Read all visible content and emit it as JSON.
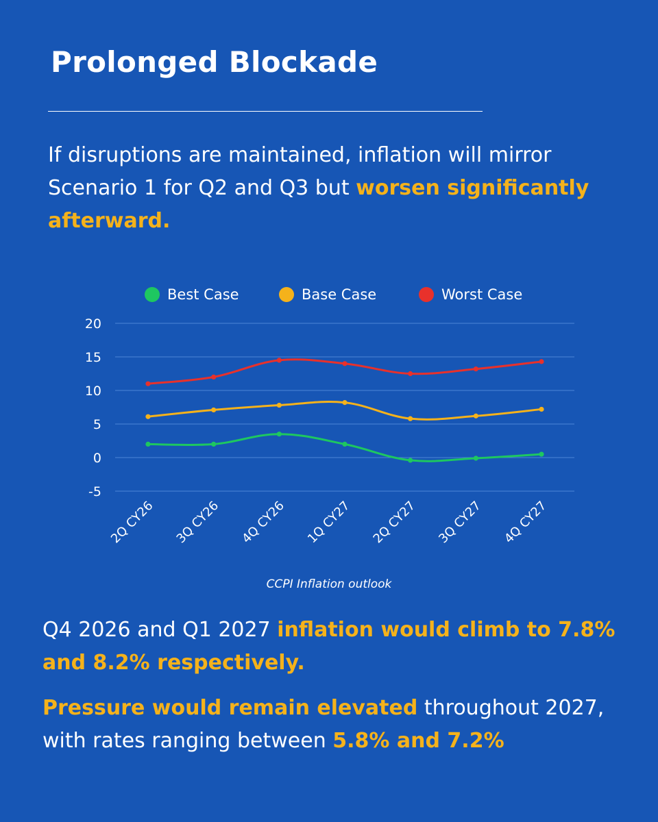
{
  "title": "Prolonged Blockade",
  "intro": {
    "text": "If disruptions are maintained, inflation will mirror Scenario 1 for Q2 and Q3 but ",
    "highlight": "worsen significantly afterward."
  },
  "chart_data": {
    "type": "line",
    "caption": "CCPI Inflation outlook",
    "categories": [
      "2Q CY26",
      "3Q CY26",
      "4Q CY26",
      "1Q CY27",
      "2Q CY27",
      "3Q CY27",
      "4Q CY27"
    ],
    "series": [
      {
        "name": "Best Case",
        "color": "#1ec760",
        "values": [
          2.0,
          2.0,
          3.5,
          2.0,
          -0.4,
          -0.1,
          0.5
        ]
      },
      {
        "name": "Base Case",
        "color": "#f5b21b",
        "values": [
          6.1,
          7.1,
          7.8,
          8.2,
          5.8,
          6.2,
          7.2
        ]
      },
      {
        "name": "Worst Case",
        "color": "#e8312b",
        "values": [
          11.0,
          12.0,
          14.5,
          14.0,
          12.5,
          13.2,
          14.3
        ]
      }
    ],
    "ylim": [
      -5,
      20
    ],
    "yticks": [
      20,
      15,
      10,
      5,
      0,
      -5
    ],
    "grid": true,
    "legend": "top-center"
  },
  "para1": {
    "text": "Q4 2026 and Q1 2027 ",
    "highlight": "inflation would climb to 7.8% and 8.2% respectively."
  },
  "para2": {
    "highlight1": "Pressure would remain elevated",
    "text": " throughout 2027, with rates ranging between ",
    "highlight2": "5.8% and 7.2%"
  },
  "colors": {
    "background": "#1756b5",
    "accent": "#f5b21b",
    "text": "#ffffff"
  }
}
